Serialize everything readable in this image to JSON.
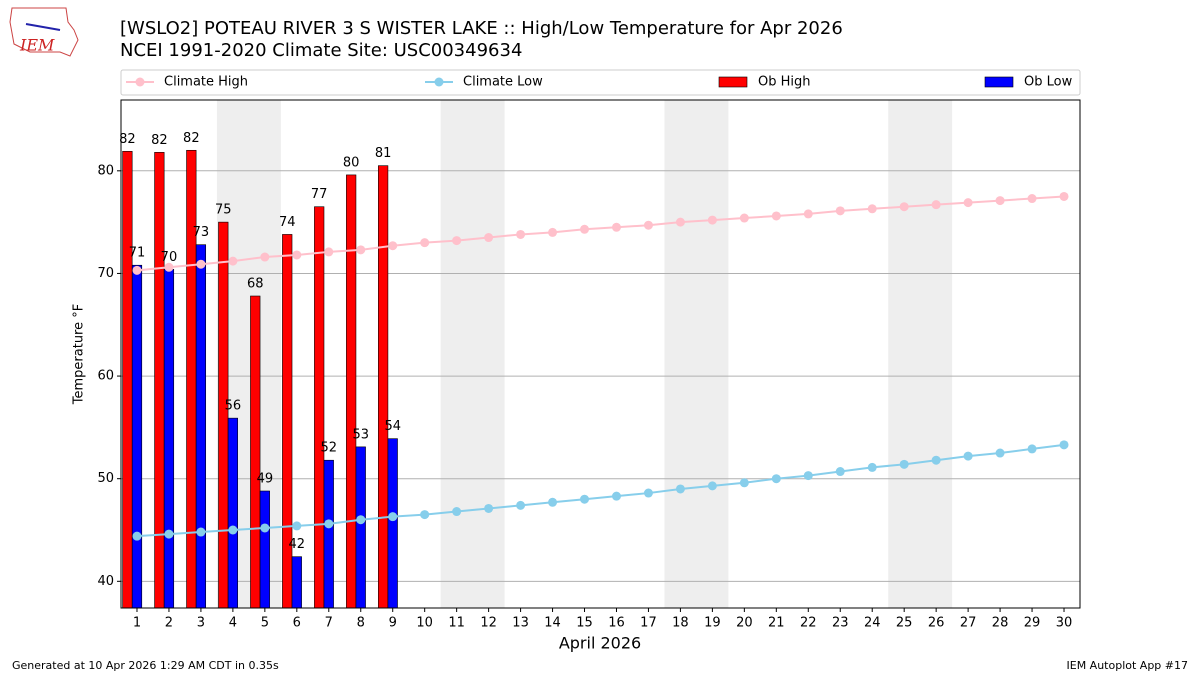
{
  "chart_data": {
    "type": "bar",
    "title": "[WSLO2] POTEAU RIVER 3 S WISTER LAKE :: High/Low Temperature for Apr 2026",
    "subtitle": "NCEI 1991-2020 Climate Site: USC00349634",
    "y_label": "Temperature °F",
    "x_label": "April 2026",
    "logo": "IEM",
    "footer_left": "Generated at 10 Apr 2026 1:29 AM CDT in 0.35s",
    "footer_right": "IEM Autoplot App #17",
    "x": [
      1,
      2,
      3,
      4,
      5,
      6,
      7,
      8,
      9,
      10,
      11,
      12,
      13,
      14,
      15,
      16,
      17,
      18,
      19,
      20,
      21,
      22,
      23,
      24,
      25,
      26,
      27,
      28,
      29,
      30
    ],
    "xlim": [
      0.5,
      30.5
    ],
    "xticks": [
      1,
      2,
      3,
      4,
      5,
      6,
      7,
      8,
      9,
      10,
      11,
      12,
      13,
      14,
      15,
      16,
      17,
      18,
      19,
      20,
      21,
      22,
      23,
      24,
      25,
      26,
      27,
      28,
      29,
      30
    ],
    "ylim": [
      37.4,
      86.9
    ],
    "yticks": [
      40,
      50,
      60,
      70,
      80
    ],
    "grid": true,
    "shaded_spans": [
      [
        3.5,
        5.5
      ],
      [
        10.5,
        12.5
      ],
      [
        17.5,
        19.5
      ],
      [
        24.5,
        26.5
      ]
    ],
    "shade_color": "#eeeeee",
    "legend": "top",
    "series": [
      {
        "name": "Climate High",
        "type": "line",
        "color": "#ffc0cb",
        "values": [
          70.3,
          70.6,
          70.9,
          71.2,
          71.6,
          71.8,
          72.1,
          72.3,
          72.7,
          73.0,
          73.2,
          73.5,
          73.8,
          74.0,
          74.3,
          74.5,
          74.7,
          75.0,
          75.2,
          75.4,
          75.6,
          75.8,
          76.1,
          76.3,
          76.5,
          76.7,
          76.9,
          77.1,
          77.3,
          77.5
        ]
      },
      {
        "name": "Climate Low",
        "type": "line",
        "color": "#87ceeb",
        "values": [
          44.4,
          44.6,
          44.8,
          45.0,
          45.2,
          45.4,
          45.6,
          46.0,
          46.3,
          46.5,
          46.8,
          47.1,
          47.4,
          47.7,
          48.0,
          48.3,
          48.6,
          49.0,
          49.3,
          49.6,
          50.0,
          50.3,
          50.7,
          51.1,
          51.4,
          51.8,
          52.2,
          52.5,
          52.9,
          53.3
        ]
      },
      {
        "name": "Ob High",
        "type": "bar",
        "color": "#ff0000",
        "values": [
          81.9,
          81.8,
          82.0,
          75.0,
          67.8,
          73.8,
          76.5,
          79.6,
          80.5,
          null,
          null,
          null,
          null,
          null,
          null,
          null,
          null,
          null,
          null,
          null,
          null,
          null,
          null,
          null,
          null,
          null,
          null,
          null,
          null,
          null
        ],
        "value_labels": [
          "82",
          "82",
          "82",
          "75",
          "68",
          "74",
          "77",
          "80",
          "81",
          null,
          null,
          null,
          null,
          null,
          null,
          null,
          null,
          null,
          null,
          null,
          null,
          null,
          null,
          null,
          null,
          null,
          null,
          null,
          null,
          null
        ]
      },
      {
        "name": "Ob Low",
        "type": "bar",
        "color": "#0000ff",
        "values": [
          70.8,
          70.4,
          72.8,
          55.9,
          48.8,
          42.4,
          51.8,
          53.1,
          53.9,
          null,
          null,
          null,
          null,
          null,
          null,
          null,
          null,
          null,
          null,
          null,
          null,
          null,
          null,
          null,
          null,
          null,
          null,
          null,
          null,
          null
        ],
        "value_labels": [
          "71",
          "70",
          "73",
          "56",
          "49",
          "42",
          "52",
          "53",
          "54",
          null,
          null,
          null,
          null,
          null,
          null,
          null,
          null,
          null,
          null,
          null,
          null,
          null,
          null,
          null,
          null,
          null,
          null,
          null,
          null,
          null
        ]
      }
    ]
  }
}
